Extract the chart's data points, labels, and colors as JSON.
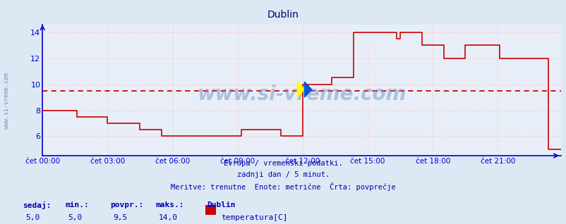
{
  "title": "Dublin",
  "bg_color": "#dce9f5",
  "plot_bg_color": "#e8eef8",
  "grid_color_h": "#ffbbbb",
  "grid_color_v": "#ffbbbb",
  "line_color": "#cc0000",
  "avg_value": 9.5,
  "ylim": [
    4.5,
    14.6
  ],
  "yticks": [
    6,
    8,
    10,
    12,
    14
  ],
  "tick_color": "#0000cc",
  "spine_color": "#0000cc",
  "title_color": "#000066",
  "text_color": "#0000aa",
  "watermark": "www.si-vreme.com",
  "watermark_left": "www.si-vreme.com",
  "subtitle1": "Evropa / vremenski podatki.",
  "subtitle2": "zadnji dan / 5 minut.",
  "subtitle3": "Meritve: trenutne  Enote: metrične  Črta: povprečje",
  "footer_labels": [
    "sedaj:",
    "min.:",
    "povpr.:",
    "maks.:"
  ],
  "footer_values": [
    "5,0",
    "5,0",
    "9,5",
    "14,0"
  ],
  "legend_label": "Dublin",
  "legend_sublabel": "temperatura[C]",
  "legend_color": "#cc0000",
  "x_labels": [
    "čet 00:00",
    "čet 03:00",
    "čet 06:00",
    "čet 09:00",
    "čet 12:00",
    "čet 15:00",
    "čet 18:00",
    "čet 21:00"
  ],
  "x_tick_positions": [
    0,
    36,
    72,
    108,
    144,
    180,
    216,
    252
  ],
  "total_points": 288,
  "time_series": [
    [
      0,
      8.0
    ],
    [
      18,
      8.0
    ],
    [
      19,
      7.5
    ],
    [
      30,
      7.5
    ],
    [
      36,
      7.0
    ],
    [
      48,
      7.0
    ],
    [
      54,
      6.5
    ],
    [
      60,
      6.5
    ],
    [
      66,
      6.0
    ],
    [
      108,
      6.0
    ],
    [
      110,
      6.5
    ],
    [
      126,
      6.5
    ],
    [
      132,
      6.0
    ],
    [
      143,
      6.0
    ],
    [
      144,
      10.0
    ],
    [
      156,
      10.0
    ],
    [
      160,
      10.5
    ],
    [
      168,
      10.5
    ],
    [
      172,
      14.0
    ],
    [
      192,
      14.0
    ],
    [
      196,
      13.5
    ],
    [
      198,
      14.0
    ],
    [
      204,
      14.0
    ],
    [
      210,
      13.0
    ],
    [
      216,
      13.0
    ],
    [
      222,
      12.0
    ],
    [
      228,
      12.0
    ],
    [
      234,
      13.0
    ],
    [
      252,
      13.0
    ],
    [
      253,
      12.0
    ],
    [
      276,
      12.0
    ],
    [
      280,
      5.0
    ],
    [
      287,
      5.0
    ]
  ]
}
